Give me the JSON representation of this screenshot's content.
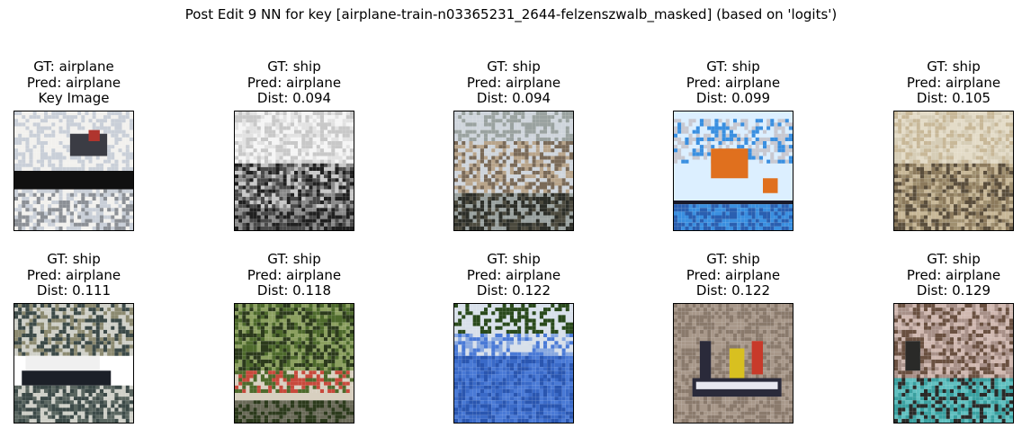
{
  "figure": {
    "title": "Post Edit 9 NN for key [airplane-train-n03365231_2644-felzenszwalb_masked] (based on 'logits')"
  },
  "rows": [
    {
      "panels": [
        {
          "gt": "GT: airplane",
          "pred": "Pred: airplane",
          "note": "Key Image",
          "image": "key-image-airplane",
          "palette": [
            "#f2f1ee",
            "#c9cfd8",
            "#3b3c44",
            "#b0352e",
            "#101010",
            "#8c9096"
          ]
        },
        {
          "gt": "GT: ship",
          "pred": "Pred: airplane",
          "note": "Dist: 0.094",
          "image": "neighbor-image-grayscale-boat",
          "palette": [
            "#f5f5f5",
            "#c8c8c8",
            "#8a8a8a",
            "#4a4a4a",
            "#202020",
            "#e2e2e2"
          ]
        },
        {
          "gt": "GT: ship",
          "pred": "Pred: airplane",
          "note": "Dist: 0.094",
          "image": "neighbor-image-canal",
          "palette": [
            "#cfd5dc",
            "#b8a48a",
            "#7a6a58",
            "#4c4a3e",
            "#2c2e28",
            "#9aa2a0"
          ]
        },
        {
          "gt": "GT: ship",
          "pred": "Pred: airplane",
          "note": "Dist: 0.099",
          "image": "neighbor-image-crane-ship",
          "palette": [
            "#dcefff",
            "#3a8fe0",
            "#e0701e",
            "#1a1a2a",
            "#c8c8d0",
            "#2a5fb0"
          ]
        },
        {
          "gt": "GT: ship",
          "pred": "Pred: airplane",
          "note": "Dist: 0.105",
          "image": "neighbor-image-sailing-ship-painting",
          "palette": [
            "#e4dcc8",
            "#c8b898",
            "#8c7a5c",
            "#5a4e3c",
            "#a09070",
            "#d6cdb6"
          ]
        }
      ]
    },
    {
      "panels": [
        {
          "gt": "GT: ship",
          "pred": "Pred: airplane",
          "note": "Dist: 0.111",
          "image": "neighbor-image-patrol-boat",
          "palette": [
            "#cfd0c8",
            "#8c8a70",
            "#f0f0f0",
            "#1c2028",
            "#5a6660",
            "#3c4a48"
          ]
        },
        {
          "gt": "GT: ship",
          "pred": "Pred: airplane",
          "note": "Dist: 0.118",
          "image": "neighbor-image-crowded-boat",
          "palette": [
            "#2c3a1c",
            "#4e6a2c",
            "#8ca060",
            "#c84a3c",
            "#d8d0c0",
            "#6a6a58"
          ]
        },
        {
          "gt": "GT: ship",
          "pred": "Pred: airplane",
          "note": "Dist: 0.122",
          "image": "neighbor-image-speedboat",
          "palette": [
            "#2a4a1c",
            "#d8e0ea",
            "#3a6ac8",
            "#2a56b0",
            "#4a7ad6",
            "#88a8e0"
          ]
        },
        {
          "gt": "GT: ship",
          "pred": "Pred: airplane",
          "note": "Dist: 0.122",
          "image": "neighbor-image-inflatable-boat",
          "palette": [
            "#a8988a",
            "#8a7a6c",
            "#d8c020",
            "#2a2a3a",
            "#c83a2a",
            "#e8e8f0"
          ]
        },
        {
          "gt": "GT: ship",
          "pred": "Pred: airplane",
          "note": "Dist: 0.129",
          "image": "neighbor-image-venice-gondola",
          "palette": [
            "#d0b8b0",
            "#a89088",
            "#6a5040",
            "#2a2a28",
            "#3aa0a0",
            "#60c0c0"
          ]
        }
      ]
    }
  ]
}
